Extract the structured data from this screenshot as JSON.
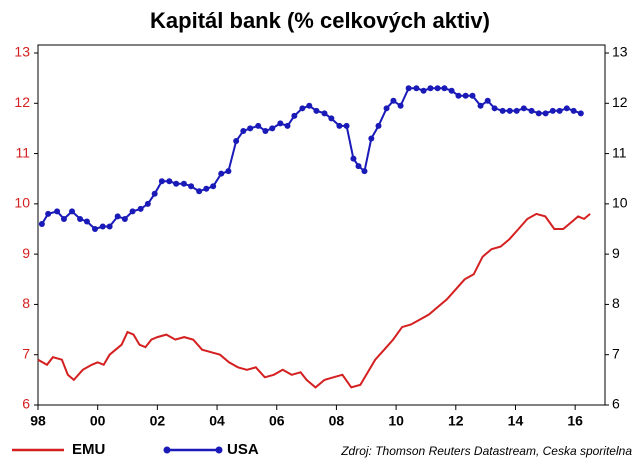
{
  "chart_data": {
    "type": "line",
    "title": "Kapitál bank (% celkových aktiv)",
    "source": "Zdroj: Thomson Reuters Datastream, Ceska sporitelna",
    "xlim": [
      1998,
      2017
    ],
    "xticks": [
      {
        "value": 1998,
        "label": "98"
      },
      {
        "value": 2000,
        "label": "00"
      },
      {
        "value": 2002,
        "label": "02"
      },
      {
        "value": 2004,
        "label": "04"
      },
      {
        "value": 2006,
        "label": "06"
      },
      {
        "value": 2008,
        "label": "08"
      },
      {
        "value": 2010,
        "label": "10"
      },
      {
        "value": 2012,
        "label": "12"
      },
      {
        "value": 2014,
        "label": "14"
      },
      {
        "value": 2016,
        "label": "16"
      }
    ],
    "ylim": [
      6,
      13
    ],
    "yticks": [
      6,
      7,
      8,
      9,
      10,
      11,
      12,
      13
    ],
    "y2lim": [
      6,
      13
    ],
    "y2ticks": [
      6,
      7,
      8,
      9,
      10,
      11,
      12,
      13
    ],
    "ytick_color": "#d42020",
    "grid": false,
    "legend": "bottom-left",
    "series": [
      {
        "name": "EMU",
        "color": "#d42020",
        "markers": false,
        "x": [
          1998.0,
          1998.3,
          1998.5,
          1998.8,
          1999.0,
          1999.2,
          1999.5,
          1999.8,
          2000.0,
          2000.2,
          2000.4,
          2000.6,
          2000.8,
          2001.0,
          2001.2,
          2001.4,
          2001.6,
          2001.8,
          2002.0,
          2002.3,
          2002.6,
          2002.9,
          2003.2,
          2003.5,
          2003.8,
          2004.1,
          2004.4,
          2004.7,
          2005.0,
          2005.3,
          2005.6,
          2005.9,
          2006.2,
          2006.5,
          2006.8,
          2007.0,
          2007.3,
          2007.6,
          2007.9,
          2008.2,
          2008.5,
          2008.8,
          2009.0,
          2009.3,
          2009.6,
          2009.9,
          2010.2,
          2010.5,
          2010.8,
          2011.1,
          2011.4,
          2011.7,
          2012.0,
          2012.3,
          2012.6,
          2012.9,
          2013.2,
          2013.5,
          2013.8,
          2014.1,
          2014.4,
          2014.7,
          2015.0,
          2015.3,
          2015.6,
          2015.9,
          2016.1,
          2016.3,
          2016.5
        ],
        "values": [
          6.9,
          6.8,
          6.95,
          6.9,
          6.6,
          6.5,
          6.7,
          6.8,
          6.85,
          6.8,
          7.0,
          7.1,
          7.2,
          7.45,
          7.4,
          7.2,
          7.15,
          7.3,
          7.35,
          7.4,
          7.3,
          7.35,
          7.3,
          7.1,
          7.05,
          7.0,
          6.85,
          6.75,
          6.7,
          6.75,
          6.55,
          6.6,
          6.7,
          6.6,
          6.65,
          6.5,
          6.35,
          6.5,
          6.55,
          6.6,
          6.35,
          6.4,
          6.6,
          6.9,
          7.1,
          7.3,
          7.55,
          7.6,
          7.7,
          7.8,
          7.95,
          8.1,
          8.3,
          8.5,
          8.6,
          8.95,
          9.1,
          9.15,
          9.3,
          9.5,
          9.7,
          9.8,
          9.75,
          9.5,
          9.5,
          9.65,
          9.75,
          9.7,
          9.8
        ]
      },
      {
        "name": "USA",
        "color": "#1a1ab8",
        "markers": true,
        "x": [
          1998.13,
          1998.34,
          1998.64,
          1998.87,
          1999.14,
          1999.41,
          1999.64,
          1999.91,
          2000.17,
          2000.4,
          2000.67,
          2000.91,
          2001.17,
          2001.44,
          2001.68,
          2001.91,
          2002.15,
          2002.4,
          2002.63,
          2002.89,
          2003.13,
          2003.4,
          2003.64,
          2003.87,
          2004.14,
          2004.38,
          2004.64,
          2004.88,
          2005.11,
          2005.38,
          2005.62,
          2005.85,
          2006.12,
          2006.36,
          2006.59,
          2006.86,
          2007.09,
          2007.33,
          2007.6,
          2007.83,
          2008.1,
          2008.34,
          2008.57,
          2008.74,
          2008.94,
          2009.17,
          2009.41,
          2009.68,
          2009.91,
          2010.15,
          2010.42,
          2010.68,
          2010.92,
          2011.15,
          2011.39,
          2011.62,
          2011.86,
          2012.09,
          2012.33,
          2012.56,
          2012.83,
          2013.07,
          2013.3,
          2013.57,
          2013.81,
          2014.04,
          2014.28,
          2014.54,
          2014.78,
          2015.01,
          2015.25,
          2015.48,
          2015.72,
          2015.95,
          2016.19
        ],
        "values": [
          9.6,
          9.8,
          9.85,
          9.7,
          9.85,
          9.7,
          9.65,
          9.5,
          9.55,
          9.55,
          9.75,
          9.7,
          9.85,
          9.9,
          10.0,
          10.2,
          10.45,
          10.45,
          10.4,
          10.4,
          10.35,
          10.25,
          10.3,
          10.35,
          10.6,
          10.65,
          11.25,
          11.45,
          11.5,
          11.55,
          11.45,
          11.5,
          11.6,
          11.55,
          11.75,
          11.9,
          11.95,
          11.85,
          11.8,
          11.7,
          11.55,
          11.55,
          10.9,
          10.75,
          10.65,
          11.3,
          11.55,
          11.9,
          12.05,
          11.95,
          12.3,
          12.3,
          12.25,
          12.3,
          12.3,
          12.3,
          12.25,
          12.15,
          12.15,
          12.15,
          11.95,
          12.05,
          11.9,
          11.85,
          11.85,
          11.85,
          11.9,
          11.85,
          11.8,
          11.8,
          11.85,
          11.85,
          11.9,
          11.85,
          11.8
        ]
      }
    ]
  }
}
